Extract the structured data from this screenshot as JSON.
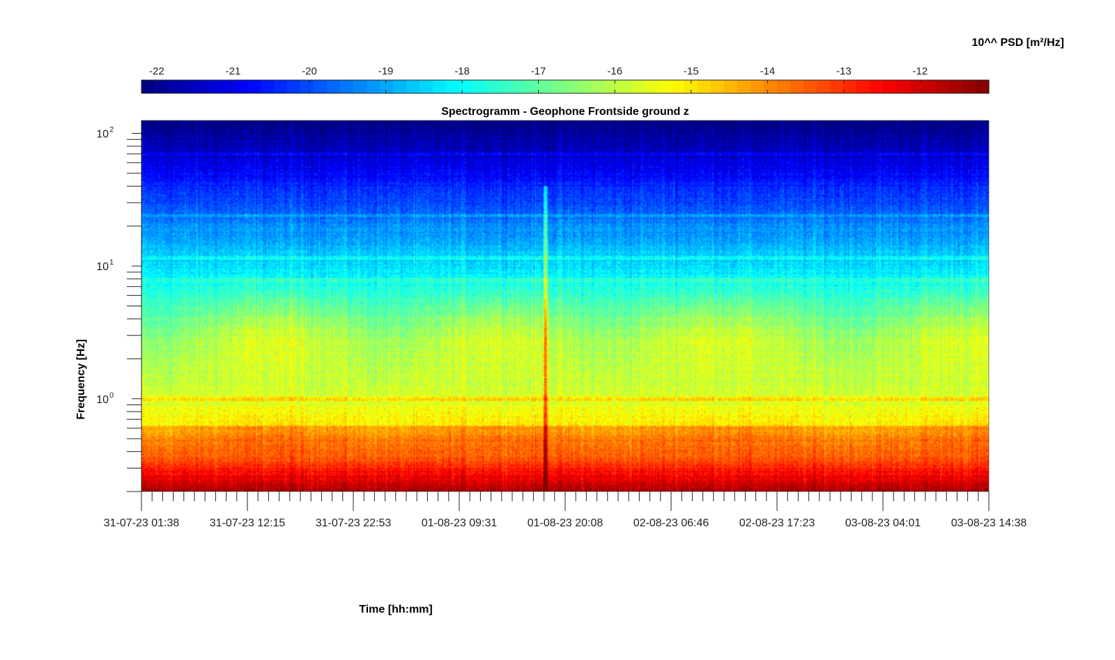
{
  "chart_data": {
    "type": "heatmap",
    "title": "Spectrogramm - Geophone Frontside ground z",
    "xlabel": "Time [hh:mm]",
    "ylabel": "Frequency [Hz]",
    "y_scale": "log",
    "ylim_hz": [
      0.2,
      125
    ],
    "y_ticks": [
      {
        "value": 1,
        "base": "10",
        "exp": "0"
      },
      {
        "value": 10,
        "base": "10",
        "exp": "1"
      },
      {
        "value": 100,
        "base": "10",
        "exp": "2"
      }
    ],
    "x_tick_labels": [
      "31-07-23 01:38",
      "31-07-23 12:15",
      "31-07-23 22:53",
      "01-08-23 09:31",
      "01-08-23 20:08",
      "02-08-23 06:46",
      "02-08-23 17:23",
      "03-08-23 04:01",
      "03-08-23 14:38"
    ],
    "colorbar": {
      "label": "10^^ PSD [m²/Hz]",
      "min": -22.2,
      "max": -11.1,
      "ticks": [
        -22,
        -21,
        -20,
        -19,
        -18,
        -17,
        -16,
        -15,
        -14,
        -13,
        -12
      ],
      "colormap": "jet"
    },
    "features": {
      "broadband_event_time_fraction": 0.477,
      "horizontal_lines_hz": [
        1.0,
        7.8,
        11.5,
        24,
        70
      ],
      "grid": false
    }
  }
}
